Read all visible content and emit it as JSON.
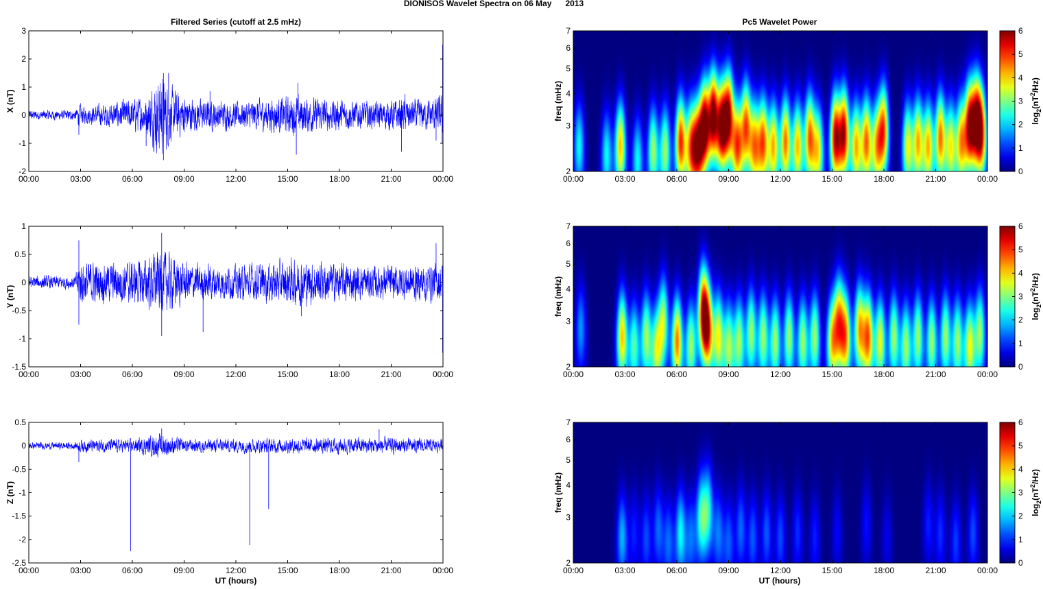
{
  "figure": {
    "title": "DIONISOS Wavelet Spectra on 06 May      2013",
    "left_title": "Filtered Series (cutoff at 2.5 mHz)",
    "right_title": "Pc5 Wavelet Power",
    "xlabel": "UT (hours)",
    "freq_label": "freq (mHz)",
    "colorbar_label": "log2(nT²/Hz)",
    "colorbar_label_parts": {
      "base": "log",
      "sub": "2",
      "pre": "(nT",
      "sup": "2",
      "post": "/Hz)"
    },
    "colormap": "jet",
    "line_color": "#0000ff"
  },
  "chart_data": [
    {
      "id": "X",
      "type": "line",
      "ylabel": "X (nT)",
      "xlim": [
        0,
        24
      ],
      "ylim": [
        -2,
        3
      ],
      "yticks": [
        -2,
        -1,
        0,
        1,
        2,
        3
      ],
      "xticks": [
        "00:00",
        "03:00",
        "06:00",
        "09:00",
        "12:00",
        "15:00",
        "18:00",
        "21:00",
        "00:00"
      ],
      "envelope": [
        [
          0,
          0.15
        ],
        [
          2.7,
          0.15
        ],
        [
          2.9,
          0.35
        ],
        [
          3.3,
          0.25
        ],
        [
          5.5,
          0.45
        ],
        [
          6.8,
          0.55
        ],
        [
          7.6,
          1.3
        ],
        [
          8.3,
          0.8
        ],
        [
          9.5,
          0.5
        ],
        [
          12,
          0.4
        ],
        [
          15.5,
          0.6
        ],
        [
          17,
          0.5
        ],
        [
          20,
          0.4
        ],
        [
          21.5,
          0.5
        ],
        [
          23,
          0.45
        ],
        [
          24,
          0.6
        ]
      ],
      "spikes": [
        [
          2.9,
          -0.7
        ],
        [
          6.8,
          -1.1
        ],
        [
          7.8,
          -1.6
        ],
        [
          7.8,
          1.5
        ],
        [
          8.1,
          1.5
        ],
        [
          10.5,
          0.85
        ],
        [
          15.6,
          1.15
        ],
        [
          15.5,
          -1.4
        ],
        [
          21.6,
          -1.3
        ],
        [
          21.8,
          0.75
        ],
        [
          23.6,
          -0.9
        ],
        [
          23.98,
          2.5
        ],
        [
          23.95,
          -1.0
        ]
      ]
    },
    {
      "id": "Y",
      "type": "line",
      "ylabel": "Y (nT)",
      "xlim": [
        0,
        24
      ],
      "ylim": [
        -1.5,
        1
      ],
      "yticks": [
        -1.5,
        -1,
        -0.5,
        0,
        0.5,
        1
      ],
      "xticks": [
        "00:00",
        "03:00",
        "06:00",
        "09:00",
        "12:00",
        "15:00",
        "18:00",
        "21:00",
        "00:00"
      ],
      "envelope": [
        [
          0,
          0.1
        ],
        [
          2.7,
          0.1
        ],
        [
          2.9,
          0.35
        ],
        [
          4.5,
          0.3
        ],
        [
          6.5,
          0.35
        ],
        [
          7.7,
          0.5
        ],
        [
          9,
          0.3
        ],
        [
          12,
          0.25
        ],
        [
          15.5,
          0.35
        ],
        [
          17.5,
          0.3
        ],
        [
          20,
          0.25
        ],
        [
          24,
          0.3
        ]
      ],
      "spikes": [
        [
          2.9,
          0.75
        ],
        [
          2.9,
          -0.75
        ],
        [
          7.7,
          0.88
        ],
        [
          7.7,
          -0.95
        ],
        [
          10.1,
          -0.88
        ],
        [
          12.4,
          -0.3
        ],
        [
          15.8,
          -0.6
        ],
        [
          23.6,
          0.7
        ],
        [
          23.98,
          -1.25
        ]
      ]
    },
    {
      "id": "Z",
      "type": "line",
      "ylabel": "Z (nT)",
      "xlim": [
        0,
        24
      ],
      "ylim": [
        -2.5,
        0.5
      ],
      "yticks": [
        -2.5,
        -2,
        -1.5,
        -1,
        -0.5,
        0,
        0.5
      ],
      "xticks": [
        "00:00",
        "03:00",
        "06:00",
        "09:00",
        "12:00",
        "15:00",
        "18:00",
        "21:00",
        "00:00"
      ],
      "envelope": [
        [
          0,
          0.06
        ],
        [
          2.7,
          0.07
        ],
        [
          3,
          0.12
        ],
        [
          6,
          0.12
        ],
        [
          7.7,
          0.22
        ],
        [
          9,
          0.12
        ],
        [
          20.3,
          0.15
        ],
        [
          24,
          0.12
        ]
      ],
      "spikes": [
        [
          5.9,
          -2.25
        ],
        [
          12.8,
          -2.12
        ],
        [
          13.9,
          -1.35
        ],
        [
          7.7,
          0.37
        ],
        [
          2.9,
          -0.35
        ],
        [
          20.3,
          0.35
        ]
      ]
    },
    {
      "id": "WX",
      "type": "heatmap",
      "ylabel": "freq (mHz)",
      "y_scale": "log",
      "ylim": [
        2,
        7
      ],
      "yticks": [
        2,
        3,
        4,
        5,
        6,
        7
      ],
      "clim": [
        0,
        6
      ],
      "cticks": [
        0,
        1,
        2,
        3,
        4,
        5,
        6
      ],
      "xticks": [
        "00:00",
        "03:00",
        "06:00",
        "09:00",
        "12:00",
        "15:00",
        "18:00",
        "21:00",
        "00:00"
      ],
      "blobs": [
        [
          0.3,
          2.5,
          2.5
        ],
        [
          1.9,
          2.3,
          2.5
        ],
        [
          2.7,
          2.5,
          4.5
        ],
        [
          3.7,
          2.2,
          2.5
        ],
        [
          4.6,
          2.4,
          3.5
        ],
        [
          5.3,
          2.4,
          3.5
        ],
        [
          6.2,
          2.6,
          5.5
        ],
        [
          6.8,
          2.5,
          4.5
        ],
        [
          7.2,
          2.5,
          5.5
        ],
        [
          7.6,
          3.0,
          6.5
        ],
        [
          8.1,
          3.3,
          6.5
        ],
        [
          8.6,
          3.0,
          6.3
        ],
        [
          9.0,
          3.3,
          6.0
        ],
        [
          9.5,
          2.5,
          5.0
        ],
        [
          10.0,
          3.0,
          5.0
        ],
        [
          10.5,
          2.5,
          4.5
        ],
        [
          11.0,
          2.6,
          5.0
        ],
        [
          11.6,
          2.5,
          4.5
        ],
        [
          12.3,
          2.6,
          5.0
        ],
        [
          13.0,
          2.5,
          4.5
        ],
        [
          13.7,
          2.7,
          5.0
        ],
        [
          14.2,
          2.4,
          4.0
        ],
        [
          15.2,
          2.7,
          6.0
        ],
        [
          15.7,
          2.8,
          6.0
        ],
        [
          16.4,
          2.5,
          4.5
        ],
        [
          17.0,
          2.6,
          5.0
        ],
        [
          17.6,
          2.5,
          4.0
        ],
        [
          18.0,
          2.9,
          5.0
        ],
        [
          19.4,
          2.5,
          4.0
        ],
        [
          20.0,
          2.6,
          4.5
        ],
        [
          20.6,
          2.5,
          4.5
        ],
        [
          21.3,
          2.7,
          5.0
        ],
        [
          21.9,
          2.5,
          4.0
        ],
        [
          22.5,
          2.6,
          4.5
        ],
        [
          23.0,
          3.0,
          6.0
        ],
        [
          23.4,
          3.2,
          5.5
        ],
        [
          23.7,
          2.8,
          5.0
        ]
      ]
    },
    {
      "id": "WY",
      "type": "heatmap",
      "ylabel": "freq (mHz)",
      "y_scale": "log",
      "ylim": [
        2,
        7
      ],
      "yticks": [
        2,
        3,
        4,
        5,
        6,
        7
      ],
      "clim": [
        0,
        6
      ],
      "cticks": [
        0,
        1,
        2,
        3,
        4,
        5,
        6
      ],
      "xticks": [
        "00:00",
        "03:00",
        "06:00",
        "09:00",
        "12:00",
        "15:00",
        "18:00",
        "21:00",
        "00:00"
      ],
      "blobs": [
        [
          0.4,
          2.8,
          1.8
        ],
        [
          2.8,
          2.6,
          4.5
        ],
        [
          3.5,
          2.4,
          3.0
        ],
        [
          4.2,
          2.6,
          3.5
        ],
        [
          4.8,
          2.3,
          3.5
        ],
        [
          5.2,
          3.0,
          3.5
        ],
        [
          6.0,
          2.5,
          5.0
        ],
        [
          6.8,
          2.4,
          3.5
        ],
        [
          7.5,
          3.3,
          5.5
        ],
        [
          7.8,
          2.8,
          5.0
        ],
        [
          8.4,
          2.6,
          4.0
        ],
        [
          9.0,
          2.4,
          3.5
        ],
        [
          9.6,
          2.5,
          3.5
        ],
        [
          10.3,
          2.7,
          3.5
        ],
        [
          11.0,
          2.6,
          3.5
        ],
        [
          11.7,
          2.5,
          3.5
        ],
        [
          12.5,
          2.6,
          3.5
        ],
        [
          13.3,
          2.5,
          3.5
        ],
        [
          14.0,
          2.6,
          3.5
        ],
        [
          15.0,
          2.5,
          4.0
        ],
        [
          15.4,
          3.0,
          4.5
        ],
        [
          15.8,
          2.6,
          4.5
        ],
        [
          16.6,
          2.8,
          4.5
        ],
        [
          17.1,
          2.6,
          5.0
        ],
        [
          17.8,
          2.5,
          4.0
        ],
        [
          18.6,
          2.6,
          3.5
        ],
        [
          19.3,
          2.4,
          3.5
        ],
        [
          20.0,
          2.6,
          3.5
        ],
        [
          20.8,
          2.5,
          3.5
        ],
        [
          21.6,
          2.6,
          3.5
        ],
        [
          22.3,
          2.5,
          3.5
        ],
        [
          23.0,
          2.4,
          4.0
        ],
        [
          23.6,
          2.7,
          3.5
        ]
      ]
    },
    {
      "id": "WZ",
      "type": "heatmap",
      "ylabel": "freq (mHz)",
      "y_scale": "log",
      "ylim": [
        2,
        7
      ],
      "yticks": [
        2,
        3,
        4,
        5,
        6,
        7
      ],
      "clim": [
        0,
        6
      ],
      "cticks": [
        0,
        1,
        2,
        3,
        4,
        5,
        6
      ],
      "xticks": [
        "00:00",
        "03:00",
        "06:00",
        "09:00",
        "12:00",
        "15:00",
        "18:00",
        "21:00",
        "00:00"
      ],
      "blobs": [
        [
          2.8,
          2.5,
          2.0
        ],
        [
          3.5,
          2.6,
          1.0
        ],
        [
          4.2,
          2.5,
          1.3
        ],
        [
          4.9,
          2.7,
          1.5
        ],
        [
          5.5,
          2.4,
          1.5
        ],
        [
          6.2,
          2.6,
          2.5
        ],
        [
          6.8,
          2.5,
          1.5
        ],
        [
          7.4,
          3.0,
          2.8
        ],
        [
          7.8,
          3.2,
          2.5
        ],
        [
          8.4,
          2.6,
          1.6
        ],
        [
          9.0,
          2.4,
          1.4
        ],
        [
          9.7,
          2.7,
          1.5
        ],
        [
          10.4,
          2.5,
          1.4
        ],
        [
          11.2,
          2.6,
          1.4
        ],
        [
          12.0,
          2.5,
          1.3
        ],
        [
          13.0,
          2.6,
          1.1
        ],
        [
          14.0,
          2.5,
          1.0
        ],
        [
          15.3,
          2.6,
          0.8
        ],
        [
          17.0,
          2.8,
          0.9
        ],
        [
          18.2,
          2.5,
          0.7
        ],
        [
          20.6,
          2.8,
          1.0
        ],
        [
          21.3,
          2.6,
          1.1
        ],
        [
          22.2,
          2.4,
          1.2
        ],
        [
          23.2,
          2.6,
          1.3
        ]
      ]
    }
  ]
}
